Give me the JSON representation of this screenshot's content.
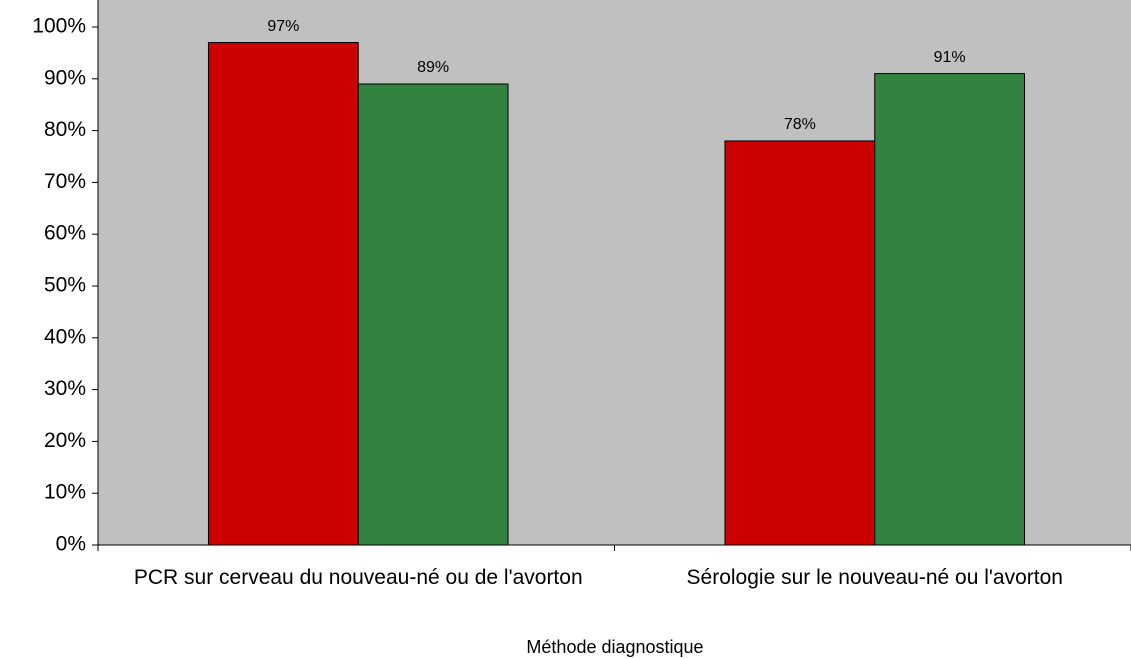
{
  "chart_data": {
    "type": "bar",
    "x_label": "Méthode diagnostique",
    "categories": [
      "PCR sur cerveau du nouveau-né ou de l'avorton",
      "Sérologie sur le nouveau-né ou l'avorton"
    ],
    "series": [
      {
        "color": "#cc0000",
        "values": [
          97,
          78
        ],
        "value_labels": [
          "97%",
          "78%"
        ]
      },
      {
        "color": "#31833f",
        "values": [
          89,
          91
        ],
        "value_labels": [
          "89%",
          "91%"
        ]
      }
    ],
    "ylim": [
      0,
      100
    ],
    "yticks": [
      {
        "value": 0,
        "label": "0%"
      },
      {
        "value": 10,
        "label": "10%"
      },
      {
        "value": 20,
        "label": "20%"
      },
      {
        "value": 30,
        "label": "30%"
      },
      {
        "value": 40,
        "label": "40%"
      },
      {
        "value": 50,
        "label": "50%"
      },
      {
        "value": 60,
        "label": "60%"
      },
      {
        "value": 70,
        "label": "70%"
      },
      {
        "value": 80,
        "label": "80%"
      },
      {
        "value": 90,
        "label": "90%"
      },
      {
        "value": 100,
        "label": "100%"
      }
    ],
    "plot_background": "#c0c0c0"
  }
}
